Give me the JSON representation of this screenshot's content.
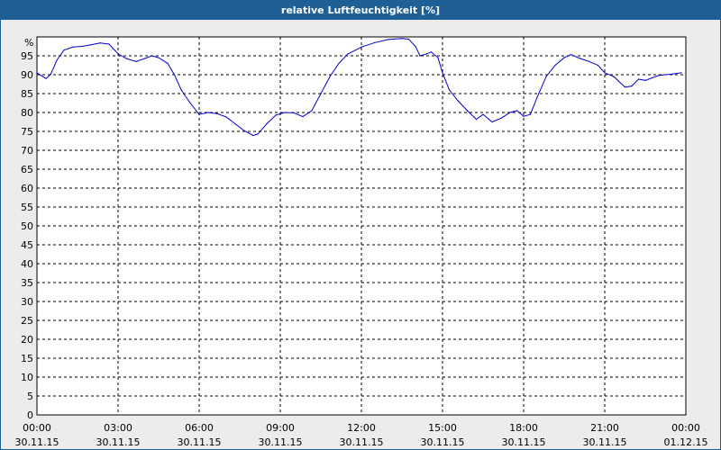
{
  "title": "relative Luftfeuchtigkeit [%]",
  "colors": {
    "title_bar": "#1e5f96",
    "plot_bg": "#ffffff",
    "panel_bg": "#ececec",
    "line": "#0000cc",
    "grid": "#000000"
  },
  "chart_data": {
    "type": "line",
    "title": "relative Luftfeuchtigkeit [%]",
    "ylabel": "%",
    "xlabel": "",
    "ylim": [
      0,
      100
    ],
    "y_ticks": [
      0,
      5,
      10,
      15,
      20,
      25,
      30,
      35,
      40,
      45,
      50,
      55,
      60,
      65,
      70,
      75,
      80,
      85,
      90,
      95
    ],
    "xlim": [
      "30.11.15 00:00",
      "01.12.15 00:00"
    ],
    "x_ticks": [
      {
        "time": "00:00",
        "date": "30.11.15"
      },
      {
        "time": "03:00",
        "date": "30.11.15"
      },
      {
        "time": "06:00",
        "date": "30.11.15"
      },
      {
        "time": "09:00",
        "date": "30.11.15"
      },
      {
        "time": "12:00",
        "date": "30.11.15"
      },
      {
        "time": "15:00",
        "date": "30.11.15"
      },
      {
        "time": "18:00",
        "date": "30.11.15"
      },
      {
        "time": "21:00",
        "date": "30.11.15"
      },
      {
        "time": "00:00",
        "date": "01.12.15"
      }
    ],
    "grid": true,
    "series": [
      {
        "color": "#0000cc",
        "points": [
          [
            "30.11.15 00:00",
            90.5
          ],
          [
            "30.11.15 00:20",
            89.0
          ],
          [
            "30.11.15 00:30",
            90.0
          ],
          [
            "30.11.15 00:45",
            94.0
          ],
          [
            "30.11.15 01:00",
            96.5
          ],
          [
            "30.11.15 01:20",
            97.3
          ],
          [
            "30.11.15 01:40",
            97.5
          ],
          [
            "30.11.15 02:00",
            97.9
          ],
          [
            "30.11.15 02:20",
            98.4
          ],
          [
            "30.11.15 02:40",
            98.1
          ],
          [
            "30.11.15 03:00",
            95.5
          ],
          [
            "30.11.15 03:20",
            94.2
          ],
          [
            "30.11.15 03:40",
            93.5
          ],
          [
            "30.11.15 04:00",
            94.3
          ],
          [
            "30.11.15 04:15",
            95.0
          ],
          [
            "30.11.15 04:30",
            94.5
          ],
          [
            "30.11.15 04:50",
            93.0
          ],
          [
            "30.11.15 05:05",
            90.0
          ],
          [
            "30.11.15 05:20",
            86.0
          ],
          [
            "30.11.15 05:40",
            82.5
          ],
          [
            "30.11.15 06:00",
            79.5
          ],
          [
            "30.11.15 06:20",
            80.0
          ],
          [
            "30.11.15 06:40",
            79.7
          ],
          [
            "30.11.15 07:00",
            78.8
          ],
          [
            "30.11.15 07:20",
            77.0
          ],
          [
            "30.11.15 07:40",
            75.2
          ],
          [
            "30.11.15 08:00",
            73.9
          ],
          [
            "30.11.15 08:10",
            74.3
          ],
          [
            "30.11.15 08:30",
            77.0
          ],
          [
            "30.11.15 08:50",
            79.3
          ],
          [
            "30.11.15 09:10",
            80.0
          ],
          [
            "30.11.15 09:30",
            79.9
          ],
          [
            "30.11.15 09:50",
            78.9
          ],
          [
            "30.11.15 10:10",
            80.5
          ],
          [
            "30.11.15 10:30",
            85.0
          ],
          [
            "30.11.15 10:50",
            89.5
          ],
          [
            "30.11.15 11:10",
            93.0
          ],
          [
            "30.11.15 11:30",
            95.5
          ],
          [
            "30.11.15 12:00",
            97.3
          ],
          [
            "30.11.15 12:30",
            98.5
          ],
          [
            "30.11.15 13:00",
            99.3
          ],
          [
            "30.11.15 13:30",
            99.6
          ],
          [
            "30.11.15 13:45",
            99.4
          ],
          [
            "30.11.15 14:00",
            97.5
          ],
          [
            "30.11.15 14:10",
            95.0
          ],
          [
            "30.11.15 14:25",
            95.5
          ],
          [
            "30.11.15 14:35",
            96.0
          ],
          [
            "30.11.15 14:50",
            94.5
          ],
          [
            "30.11.15 15:00",
            90.5
          ],
          [
            "30.11.15 15:15",
            86.0
          ],
          [
            "30.11.15 15:35",
            83.0
          ],
          [
            "30.11.15 15:55",
            80.5
          ],
          [
            "30.11.15 16:15",
            78.2
          ],
          [
            "30.11.15 16:30",
            79.5
          ],
          [
            "30.11.15 16:50",
            77.5
          ],
          [
            "30.11.15 17:10",
            78.5
          ],
          [
            "30.11.15 17:30",
            80.0
          ],
          [
            "30.11.15 17:45",
            80.5
          ],
          [
            "30.11.15 18:00",
            79.0
          ],
          [
            "30.11.15 18:15",
            79.5
          ],
          [
            "30.11.15 18:30",
            84.0
          ],
          [
            "30.11.15 18:50",
            89.5
          ],
          [
            "30.11.15 19:10",
            92.5
          ],
          [
            "30.11.15 19:30",
            94.5
          ],
          [
            "30.11.15 19:45",
            95.3
          ],
          [
            "30.11.15 20:05",
            94.3
          ],
          [
            "30.11.15 20:25",
            93.5
          ],
          [
            "30.11.15 20:45",
            92.5
          ],
          [
            "30.11.15 21:00",
            90.5
          ],
          [
            "30.11.15 21:20",
            89.5
          ],
          [
            "30.11.15 21:45",
            86.7
          ],
          [
            "30.11.15 22:00",
            87.0
          ],
          [
            "30.11.15 22:15",
            88.8
          ],
          [
            "30.11.15 22:30",
            88.5
          ],
          [
            "30.11.15 23:00",
            89.8
          ],
          [
            "30.11.15 23:30",
            90.2
          ],
          [
            "30.11.15 23:50",
            90.5
          ]
        ]
      }
    ]
  }
}
